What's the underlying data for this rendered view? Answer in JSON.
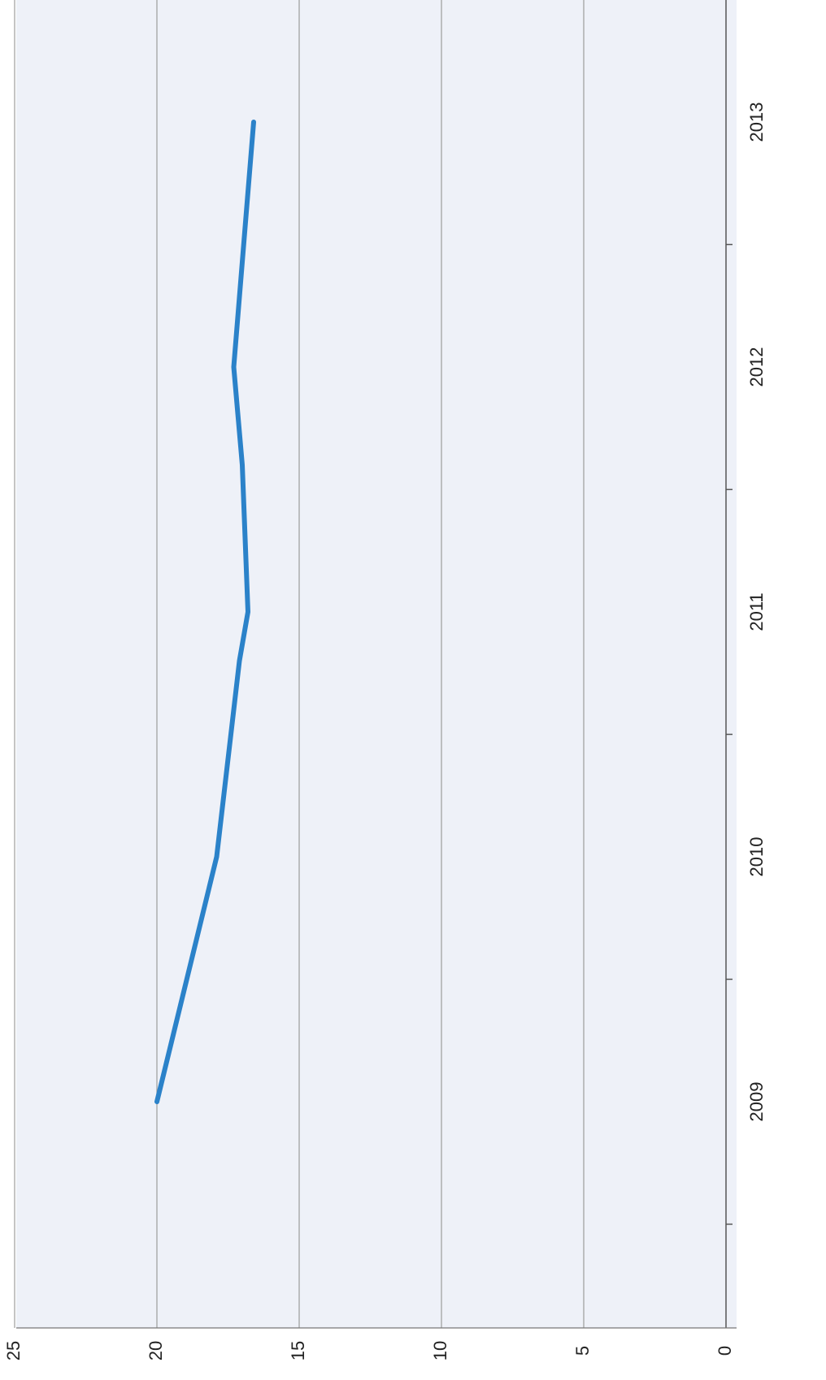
{
  "chart_data": {
    "type": "line",
    "orientation": "rotated-90-clockwise",
    "title": "",
    "xlabel": "",
    "ylabel": "",
    "x_ticks": [
      "2009",
      "2010",
      "2011",
      "2012",
      "2013"
    ],
    "y_ticks": [
      "0",
      "5",
      "10",
      "15",
      "20",
      "25"
    ],
    "ylim": [
      0,
      25
    ],
    "grid": true,
    "legend": "none",
    "series": [
      {
        "x": [
          2009,
          2010,
          2010.8,
          2011,
          2011.6,
          2012,
          2013
        ],
        "values": [
          20.0,
          17.9,
          17.1,
          16.8,
          17.0,
          17.3,
          16.6
        ]
      }
    ],
    "colors": {
      "line": "#2b82c9",
      "plot_bg": "#eef1f8",
      "grid": "#9c9c9c"
    }
  }
}
